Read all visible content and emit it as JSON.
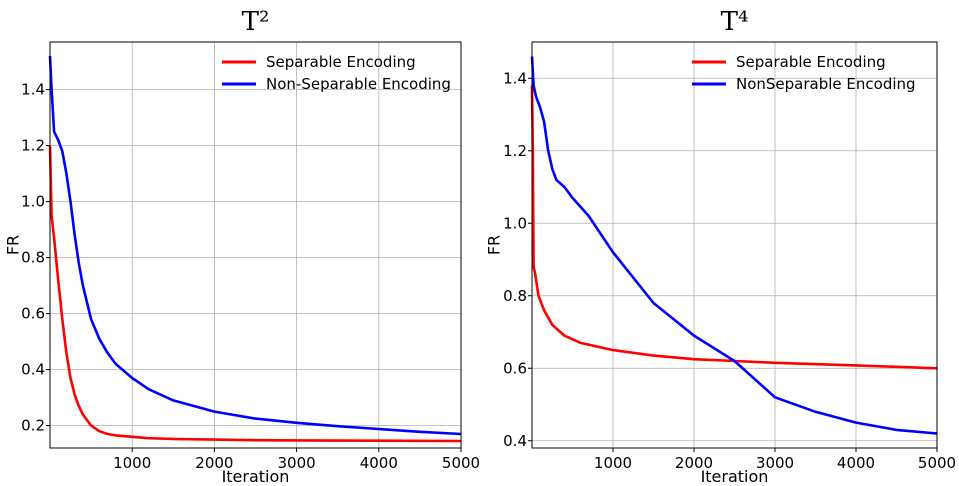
{
  "chart_data": [
    {
      "type": "line",
      "title": "T²",
      "xlabel": "Iteration",
      "ylabel": "FR",
      "xlim": [
        0,
        5000
      ],
      "ylim": [
        0.12,
        1.57
      ],
      "grid": true,
      "legend_position": "top-right",
      "x_ticks": [
        1000,
        2000,
        3000,
        4000,
        5000
      ],
      "x_tick_labels": [
        "1000",
        "2000",
        "3000",
        "4000",
        "5000"
      ],
      "y_ticks": [
        0.2,
        0.4,
        0.6,
        0.8,
        1.0,
        1.2,
        1.4
      ],
      "y_tick_labels": [
        "0.2",
        "0.4",
        "0.6",
        "0.8",
        "1.0",
        "1.2",
        "1.4"
      ],
      "series": [
        {
          "name": "Separable Encoding",
          "color": "#ff0000",
          "x": [
            0,
            20,
            50,
            100,
            150,
            200,
            250,
            300,
            350,
            400,
            450,
            500,
            600,
            700,
            800,
            1000,
            1200,
            1500,
            2000,
            2500,
            3000,
            4000,
            5000
          ],
          "y": [
            1.2,
            0.95,
            0.87,
            0.72,
            0.58,
            0.46,
            0.37,
            0.31,
            0.27,
            0.24,
            0.22,
            0.2,
            0.18,
            0.17,
            0.165,
            0.16,
            0.155,
            0.152,
            0.15,
            0.148,
            0.147,
            0.146,
            0.145
          ]
        },
        {
          "name": "Non-Separable Encoding",
          "color": "#0000ff",
          "x": [
            0,
            20,
            50,
            100,
            150,
            200,
            250,
            300,
            350,
            400,
            450,
            500,
            600,
            700,
            800,
            1000,
            1200,
            1500,
            2000,
            2500,
            3000,
            3500,
            4000,
            4500,
            5000
          ],
          "y": [
            1.52,
            1.4,
            1.25,
            1.22,
            1.18,
            1.1,
            1.0,
            0.88,
            0.78,
            0.7,
            0.64,
            0.58,
            0.51,
            0.46,
            0.42,
            0.37,
            0.33,
            0.29,
            0.25,
            0.225,
            0.21,
            0.198,
            0.188,
            0.178,
            0.17
          ]
        }
      ]
    },
    {
      "type": "line",
      "title": "T⁴",
      "xlabel": "Iteration",
      "ylabel": "FR",
      "xlim": [
        0,
        5000
      ],
      "ylim": [
        0.38,
        1.5
      ],
      "grid": true,
      "legend_position": "top-right",
      "x_ticks": [
        1000,
        2000,
        3000,
        4000,
        5000
      ],
      "x_tick_labels": [
        "1000",
        "2000",
        "3000",
        "4000",
        "5000"
      ],
      "y_ticks": [
        0.4,
        0.6,
        0.8,
        1.0,
        1.2,
        1.4
      ],
      "y_tick_labels": [
        "0.4",
        "0.6",
        "0.8",
        "1.0",
        "1.2",
        "1.4"
      ],
      "series": [
        {
          "name": "Separable Encoding",
          "color": "#ff0000",
          "x": [
            0,
            10,
            20,
            40,
            80,
            150,
            250,
            400,
            600,
            800,
            1000,
            1500,
            2000,
            2500,
            3000,
            4000,
            5000
          ],
          "y": [
            1.38,
            1.2,
            0.88,
            0.86,
            0.8,
            0.76,
            0.72,
            0.69,
            0.67,
            0.66,
            0.65,
            0.635,
            0.625,
            0.62,
            0.615,
            0.608,
            0.6
          ]
        },
        {
          "name": "NonSeparable Encoding",
          "color": "#0000ff",
          "x": [
            0,
            20,
            50,
            100,
            150,
            200,
            250,
            300,
            400,
            500,
            700,
            1000,
            1500,
            2000,
            2500,
            3000,
            3500,
            4000,
            4500,
            5000
          ],
          "y": [
            1.46,
            1.38,
            1.35,
            1.32,
            1.28,
            1.2,
            1.15,
            1.12,
            1.1,
            1.07,
            1.02,
            0.92,
            0.78,
            0.69,
            0.62,
            0.52,
            0.48,
            0.45,
            0.43,
            0.42
          ]
        }
      ]
    }
  ]
}
